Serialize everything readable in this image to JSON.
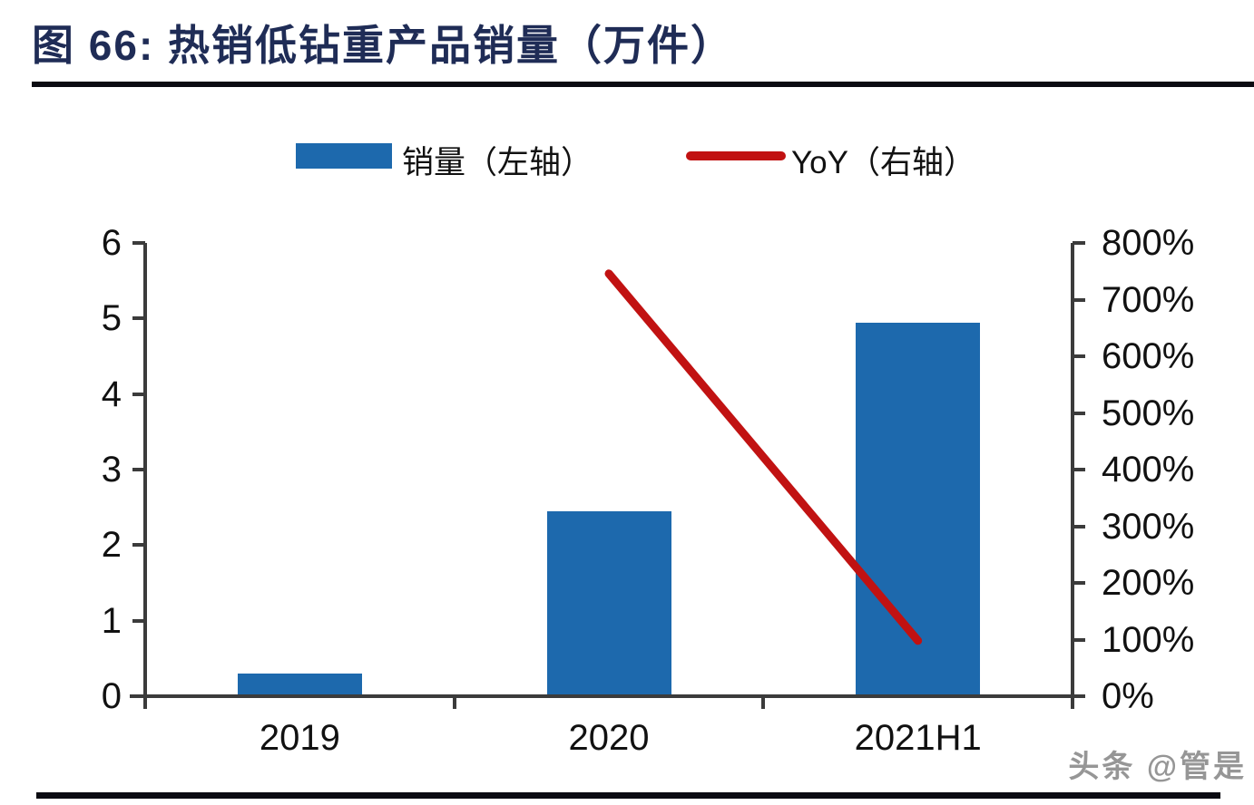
{
  "figure": {
    "title": "图 66:  热销低钻重产品销量（万件）",
    "watermark": "头条 @管是"
  },
  "legend": [
    {
      "label": "销量（左轴）",
      "swatch": "bar-swatch-icon",
      "color": "#1d69ad"
    },
    {
      "label": "YoY（右轴）",
      "swatch": "line-swatch-icon",
      "color": "#c11212"
    }
  ],
  "chart_data": {
    "type": "bar",
    "subtype": "combo-bar-line",
    "title": "热销低钻重产品销量（万件）",
    "categories": [
      "2019",
      "2020",
      "2021H1"
    ],
    "series": [
      {
        "name": "销量（左轴）",
        "type": "bar",
        "axis": "left",
        "color": "#1d69ad",
        "values": [
          0.3,
          2.45,
          4.95
        ]
      },
      {
        "name": "YoY（右轴）",
        "type": "line",
        "axis": "right",
        "color": "#c11212",
        "unit": "%",
        "values": [
          null,
          746,
          98
        ]
      }
    ],
    "left_axis": {
      "min": 0,
      "max": 6,
      "ticks": [
        "0",
        "1",
        "2",
        "3",
        "4",
        "5",
        "6"
      ]
    },
    "right_axis": {
      "min": 0,
      "max": 800,
      "ticks": [
        "0%",
        "100%",
        "200%",
        "300%",
        "400%",
        "500%",
        "600%",
        "700%",
        "800%"
      ]
    },
    "grid": false,
    "legend_position": "top-center",
    "axis_color": "#3b3b3b"
  }
}
